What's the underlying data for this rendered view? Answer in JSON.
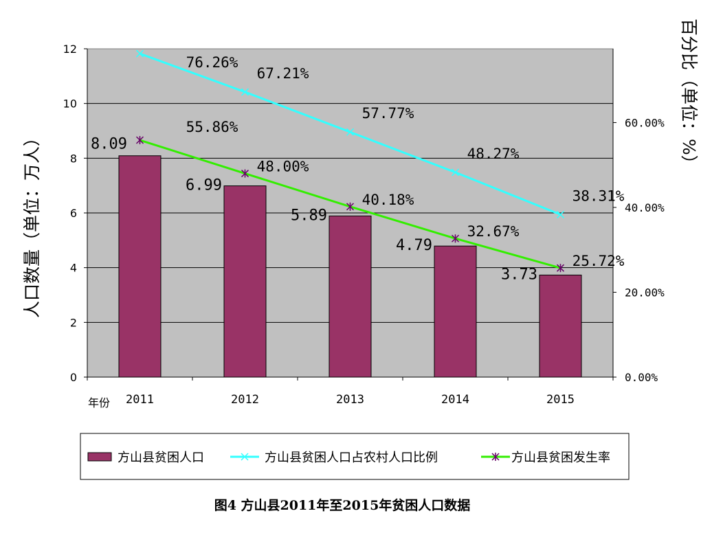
{
  "chart_data": {
    "type": "bar",
    "categories": [
      "2011",
      "2012",
      "2013",
      "2014",
      "2015"
    ],
    "x_axis_prefix": "年份",
    "left_axis": {
      "label": "人口数量（单位：万人）",
      "ylim": [
        0,
        12
      ],
      "ticks": [
        "0",
        "2",
        "4",
        "6",
        "8",
        "10",
        "12"
      ]
    },
    "right_axis": {
      "label": "百分比（单位：%）",
      "ylim": [
        0,
        77.4
      ],
      "ticks": [
        "0.00%",
        "20.00%",
        "40.00%",
        "60.00%"
      ],
      "tick_values": [
        0,
        20,
        40,
        60
      ]
    },
    "series": [
      {
        "name": "方山县贫困人口",
        "type": "bar",
        "axis": "left",
        "color": "#993366",
        "values": [
          8.09,
          6.99,
          5.89,
          4.79,
          3.73
        ],
        "labels": [
          "8.09",
          "6.99",
          "5.89",
          "4.79",
          "3.73"
        ]
      },
      {
        "name": "方山县贫困人口占农村人口比例",
        "type": "line",
        "axis": "right",
        "color": "#33ffff",
        "marker": "x",
        "values": [
          76.26,
          67.21,
          57.77,
          48.27,
          38.31
        ],
        "labels": [
          "76.26%",
          "67.21%",
          "57.77%",
          "48.27%",
          "38.31%"
        ]
      },
      {
        "name": "方山县贫困发生率",
        "type": "line",
        "axis": "right",
        "color": "#33ee00",
        "marker": "star",
        "values": [
          55.86,
          48.0,
          40.18,
          32.67,
          25.72
        ],
        "labels": [
          "55.86%",
          "48.00%",
          "40.18%",
          "32.67%",
          "25.72%"
        ]
      }
    ],
    "grid": true,
    "legend_position": "bottom",
    "plot_background": "#c0c0c0"
  },
  "caption": "图4 方山县2011年至2015年贫困人口数据"
}
